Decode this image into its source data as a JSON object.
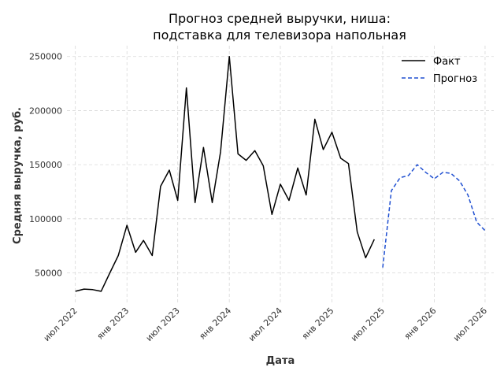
{
  "chart_data": {
    "type": "line",
    "title": "Прогноз средней выручки, ниша:\nподставка для телевизора напольная",
    "xlabel": "Дата",
    "ylabel": "Средняя выручка, руб.",
    "ylim": [
      22000,
      260000
    ],
    "xlim": [
      "2022-06-01",
      "2026-08-01"
    ],
    "grid": true,
    "legend_position": "top-right",
    "y_ticks": [
      50000,
      100000,
      150000,
      200000,
      250000
    ],
    "y_tick_labels": [
      "50000",
      "100000",
      "150000",
      "200000",
      "250000"
    ],
    "x_ticks": [
      "2022-07-01",
      "2023-01-01",
      "2023-07-01",
      "2024-01-01",
      "2024-07-01",
      "2025-01-01",
      "2025-07-01",
      "2026-01-01",
      "2026-07-01"
    ],
    "x_tick_labels": [
      "июл 2022",
      "янв 2023",
      "июл 2023",
      "янв 2024",
      "июл 2024",
      "янв 2025",
      "июл 2025",
      "янв 2026",
      "июл 2026"
    ],
    "series": [
      {
        "name": "Факт",
        "color": "#000000",
        "style": "solid",
        "x": [
          "2022-07-01",
          "2022-08-01",
          "2022-09-01",
          "2022-10-01",
          "2022-11-01",
          "2022-12-01",
          "2023-01-01",
          "2023-02-01",
          "2023-03-01",
          "2023-04-01",
          "2023-05-01",
          "2023-06-01",
          "2023-07-01",
          "2023-08-01",
          "2023-09-01",
          "2023-10-01",
          "2023-11-01",
          "2023-12-01",
          "2024-01-01",
          "2024-02-01",
          "2024-03-01",
          "2024-04-01",
          "2024-05-01",
          "2024-06-01",
          "2024-07-01",
          "2024-08-01",
          "2024-09-01",
          "2024-10-01",
          "2024-11-01",
          "2024-12-01",
          "2025-01-01",
          "2025-02-01",
          "2025-03-01",
          "2025-04-01",
          "2025-05-01",
          "2025-06-01"
        ],
        "y": [
          33000,
          35000,
          34500,
          33000,
          50000,
          66000,
          94000,
          69000,
          80000,
          66000,
          130000,
          145000,
          117000,
          221000,
          115000,
          166000,
          115000,
          162000,
          250000,
          160000,
          154000,
          163000,
          149000,
          104000,
          132000,
          117000,
          147000,
          122000,
          192000,
          164000,
          180000,
          156000,
          151000,
          88000,
          64000,
          81000
        ]
      },
      {
        "name": "Прогноз",
        "color": "#1f4fd1",
        "style": "dashed",
        "x": [
          "2025-07-01",
          "2025-08-01",
          "2025-09-01",
          "2025-10-01",
          "2025-11-01",
          "2025-12-01",
          "2026-01-01",
          "2026-02-01",
          "2026-03-01",
          "2026-04-01",
          "2026-05-01",
          "2026-06-01",
          "2026-07-01"
        ],
        "y": [
          55000,
          126000,
          138000,
          140000,
          150000,
          143000,
          137000,
          143000,
          142000,
          135000,
          122000,
          97000,
          89000
        ]
      }
    ]
  }
}
